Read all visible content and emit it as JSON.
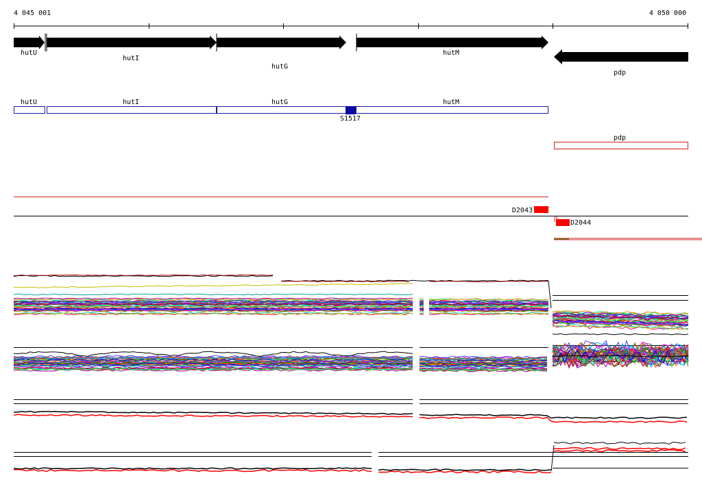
{
  "coordinate_axis": {
    "start_label": "4 045 001",
    "end_label": "4 050 000"
  },
  "genes": [
    {
      "name": "hutU",
      "strand": "+"
    },
    {
      "name": "hutI",
      "strand": "+"
    },
    {
      "name": "hutG",
      "strand": "+"
    },
    {
      "name": "hutM",
      "strand": "+"
    },
    {
      "name": "pdp",
      "strand": "-"
    }
  ],
  "transcribed_regions": [
    {
      "name": "hutU"
    },
    {
      "name": "hutI"
    },
    {
      "name": "hutG"
    },
    {
      "name": "hutM"
    },
    {
      "name": "pdp"
    }
  ],
  "binding_sites": [
    {
      "name": "S1517"
    }
  ],
  "mutants": [
    {
      "name": "D2043"
    },
    {
      "name": "D2044"
    }
  ],
  "colors": {
    "gene_arrow": "#000000",
    "region_forward": "#1a1aa0",
    "region_reverse": "#d02020",
    "binding_site": "#0a0aa0",
    "mutant_block": "#ff0000"
  }
}
